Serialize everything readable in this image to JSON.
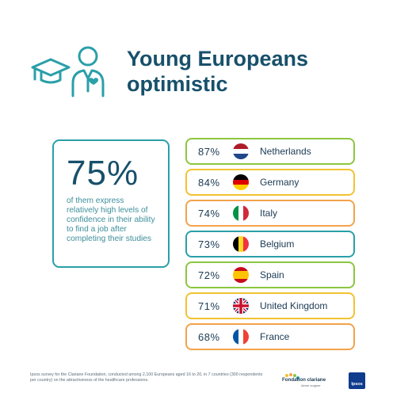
{
  "title_line1": "Young Europeans",
  "title_line2": "optimistic",
  "highlight": {
    "value": "75%",
    "text": "of them express relatively high levels of confidence in their ability to find a job after completing their studies"
  },
  "countries": [
    {
      "pct": "87%",
      "name": "Netherlands",
      "flag": "netherlands-flag-icon",
      "border": "#8cc63f"
    },
    {
      "pct": "84%",
      "name": "Germany",
      "flag": "germany-flag-icon",
      "border": "#f2c230"
    },
    {
      "pct": "74%",
      "name": "Italy",
      "flag": "italy-flag-icon",
      "border": "#f4a24b"
    },
    {
      "pct": "73%",
      "name": "Belgium",
      "flag": "belgium-flag-icon",
      "border": "#2a9fa8"
    },
    {
      "pct": "72%",
      "name": "Spain",
      "flag": "spain-flag-icon",
      "border": "#8cc63f"
    },
    {
      "pct": "71%",
      "name": "United Kingdom",
      "flag": "uk-flag-icon",
      "border": "#f2c230"
    },
    {
      "pct": "68%",
      "name": "France",
      "flag": "france-flag-icon",
      "border": "#f4a24b"
    }
  ],
  "footnote": "Ipsos survey for the Clariane Foundation, conducted among 2,100 Europeans aged 16 to 20, in 7 countries (300 respondents per country) on the attractiveness of the healthcare professions.",
  "logos": {
    "clariane": "Fondation clariane",
    "clariane_tag": "Aimer soigner",
    "ipsos": "Ipsos"
  },
  "colors": {
    "title": "#17506b",
    "accent_teal": "#2a9fa8",
    "green": "#8cc63f",
    "yellow": "#f2c230",
    "orange": "#f4a24b"
  }
}
